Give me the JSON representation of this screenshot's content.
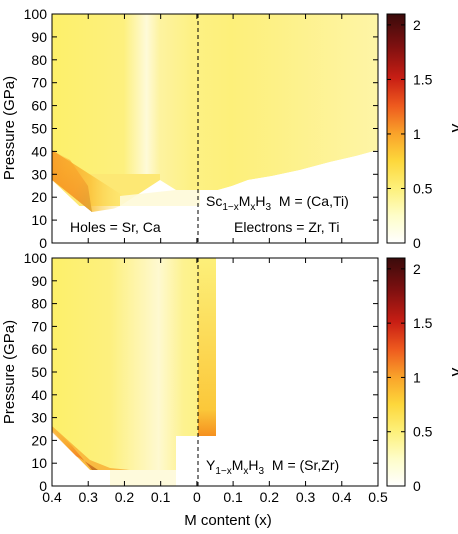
{
  "chart_data": [
    {
      "type": "heatmap",
      "title": "",
      "xlabel": "",
      "ylabel": "Pressure  (GPa)",
      "xlim": [
        0.4,
        0.5
      ],
      "x_ticks": [],
      "ylim": [
        0,
        100
      ],
      "y_ticks": [
        "0",
        "10",
        "20",
        "30",
        "40",
        "50",
        "60",
        "70",
        "80",
        "90",
        "100"
      ],
      "colorbar": {
        "label": "λ",
        "range": [
          0,
          2.1
        ],
        "ticks": [
          "0",
          "0.5",
          "1",
          "1.5",
          "2"
        ],
        "colormap": [
          "#ffffff",
          "#fefdc8",
          "#fdf07a",
          "#fdd73b",
          "#f9a22a",
          "#ee5a1e",
          "#c81e14",
          "#7e1010",
          "#3a0b0b"
        ]
      },
      "annotations": {
        "formula": "Sc",
        "formula_sub": "1−x",
        "formula_m": "M",
        "formula_msub": "x",
        "formula_h": "H",
        "formula_hsub": "3",
        "formula_tail": "  M = (Ca,Ti)",
        "holes": "Holes = Sr, Ca",
        "electrons": "Electrons = Zr, Ti"
      },
      "divider_x": 0,
      "stability_boundary": [
        {
          "x": 0.4,
          "p": 34
        },
        {
          "x": 0.35,
          "p": 27
        },
        {
          "x": 0.3,
          "p": 18
        },
        {
          "x": 0.25,
          "p": 18
        },
        {
          "x": 0.2,
          "p": 18
        },
        {
          "x": 0.15,
          "p": 18
        },
        {
          "x": 0.1,
          "p": 31
        },
        {
          "x": 0.05,
          "p": 31
        },
        {
          "x": 0.0,
          "p": 24
        },
        {
          "x": -0.05,
          "p": 24
        },
        {
          "x": -0.1,
          "p": 27
        },
        {
          "x": -0.15,
          "p": 29
        },
        {
          "x": -0.2,
          "p": 32
        },
        {
          "x": -0.3,
          "p": 35
        },
        {
          "x": -0.4,
          "p": 38
        },
        {
          "x": -0.5,
          "p": 40
        }
      ],
      "lower_left_boundary": [
        {
          "x": 0.4,
          "p": 34
        },
        {
          "x": 0.3,
          "p": 11
        },
        {
          "x": 0.25,
          "p": 14
        }
      ]
    },
    {
      "type": "heatmap",
      "title": "",
      "xlabel": "M content (x)",
      "ylabel": "Pressure  (GPa)",
      "xlim": [
        0.4,
        -0.5
      ],
      "x_ticks": [
        "0.4",
        "0.3",
        "0.2",
        "0.1",
        "0",
        "0.1",
        "0.2",
        "0.3",
        "0.4",
        "0.5"
      ],
      "ylim": [
        0,
        100
      ],
      "y_ticks": [
        "0",
        "10",
        "20",
        "30",
        "40",
        "50",
        "60",
        "70",
        "80",
        "90",
        "100"
      ],
      "colorbar": {
        "label": "λ",
        "range": [
          0,
          2.1
        ],
        "ticks": [
          "0",
          "0.5",
          "1",
          "1.5",
          "2"
        ],
        "colormap": [
          "#ffffff",
          "#fefdc8",
          "#fdf07a",
          "#fdd73b",
          "#f9a22a",
          "#ee5a1e",
          "#c81e14",
          "#7e1010",
          "#3a0b0b"
        ]
      },
      "annotations": {
        "formula": "Y",
        "formula_sub": "1−x",
        "formula_m": "M",
        "formula_msub": "x",
        "formula_h": "H",
        "formula_hsub": "3",
        "formula_tail": "  M = (Sr,Zr)"
      },
      "divider_x": 0,
      "stability_boundary": [
        {
          "x": 0.4,
          "p": 25
        },
        {
          "x": 0.3,
          "p": 7
        },
        {
          "x": 0.2,
          "p": 6
        },
        {
          "x": 0.1,
          "p": 6
        },
        {
          "x": 0.05,
          "p": 21
        },
        {
          "x": 0.0,
          "p": 21
        },
        {
          "x": -0.05,
          "p": 21
        }
      ],
      "phase_limit_x": -0.05
    }
  ]
}
